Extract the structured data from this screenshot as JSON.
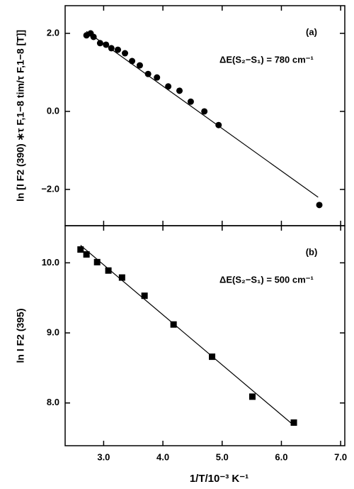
{
  "chart_data": [
    {
      "type": "scatter",
      "panel_label": "(a)",
      "annotation": "ΔE(S₂−S₁) = 780 cm⁻¹",
      "ylabel": "ln [I F2 (390) ∗τ F,1−8 tim/τ F,1−8 [T]]",
      "marker": "circle",
      "color": "#000000",
      "xlim": [
        2.35,
        7.07
      ],
      "ylim": [
        -2.93,
        2.71
      ],
      "yticks": [
        {
          "value": 2,
          "label": "2.0"
        },
        {
          "value": 0,
          "label": "0.0"
        },
        {
          "value": -2,
          "label": "−2.0"
        }
      ],
      "x": [
        2.71,
        2.78,
        2.83,
        2.94,
        3.04,
        3.13,
        3.24,
        3.36,
        3.48,
        3.61,
        3.75,
        3.9,
        4.09,
        4.28,
        4.47,
        4.7,
        4.94,
        6.64
      ],
      "values": [
        1.95,
        2.0,
        1.91,
        1.75,
        1.71,
        1.62,
        1.58,
        1.49,
        1.29,
        1.18,
        0.96,
        0.87,
        0.64,
        0.53,
        0.25,
        0.0,
        -0.35,
        -2.4
      ],
      "fit_x": [
        2.71,
        6.62
      ],
      "fit_y": [
        2.05,
        -2.2
      ]
    },
    {
      "type": "scatter",
      "panel_label": "(b)",
      "annotation": "ΔE(S₂−S₁) = 500 cm⁻¹",
      "ylabel": "ln I F2 (395)",
      "xlabel": "1/T/10⁻³  K⁻¹",
      "marker": "square",
      "color": "#000000",
      "xlim": [
        2.35,
        7.07
      ],
      "ylim": [
        7.39,
        10.53
      ],
      "xticks": [
        {
          "value": 3,
          "label": "3.0"
        },
        {
          "value": 4,
          "label": "4.0"
        },
        {
          "value": 5,
          "label": "5.0"
        },
        {
          "value": 6,
          "label": "6.0"
        },
        {
          "value": 7,
          "label": "7.0"
        }
      ],
      "yticks": [
        {
          "value": 10,
          "label": "10.0"
        },
        {
          "value": 9,
          "label": "9.0"
        },
        {
          "value": 8,
          "label": "8.0"
        }
      ],
      "x": [
        2.61,
        2.71,
        2.89,
        3.08,
        3.31,
        3.69,
        4.18,
        4.83,
        5.51,
        6.21
      ],
      "values": [
        10.19,
        10.12,
        10.01,
        9.89,
        9.79,
        9.53,
        9.12,
        8.66,
        8.09,
        7.72
      ],
      "fit_x": [
        2.61,
        6.21
      ],
      "fit_y": [
        10.25,
        7.68
      ]
    }
  ]
}
